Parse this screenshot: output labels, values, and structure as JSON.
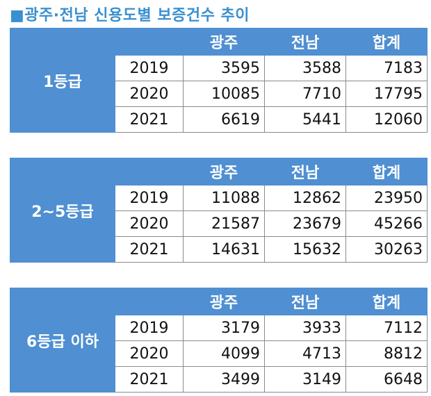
{
  "title": "■광주·전남 신용도별 보증건수 추이",
  "columns": [
    "광주",
    "전남",
    "합계"
  ],
  "groups": [
    {
      "grade": "1등급",
      "rows": [
        {
          "year": "2019",
          "gwangju": "3595",
          "jeonnam": "3588",
          "total": "7183"
        },
        {
          "year": "2020",
          "gwangju": "10085",
          "jeonnam": "7710",
          "total": "17795"
        },
        {
          "year": "2021",
          "gwangju": "6619",
          "jeonnam": "5441",
          "total": "12060"
        }
      ]
    },
    {
      "grade": "2~5등급",
      "rows": [
        {
          "year": "2019",
          "gwangju": "11088",
          "jeonnam": "12862",
          "total": "23950"
        },
        {
          "year": "2020",
          "gwangju": "21587",
          "jeonnam": "23679",
          "total": "45266"
        },
        {
          "year": "2021",
          "gwangju": "14631",
          "jeonnam": "15632",
          "total": "30263"
        }
      ]
    },
    {
      "grade": "6등급 이하",
      "rows": [
        {
          "year": "2019",
          "gwangju": "3179",
          "jeonnam": "3933",
          "total": "7112"
        },
        {
          "year": "2020",
          "gwangju": "4099",
          "jeonnam": "4713",
          "total": "8812"
        },
        {
          "year": "2021",
          "gwangju": "3499",
          "jeonnam": "3149",
          "total": "6648"
        }
      ]
    }
  ],
  "colors": {
    "header_bg": "#4f8fd2",
    "title": "#3a8fd0"
  }
}
